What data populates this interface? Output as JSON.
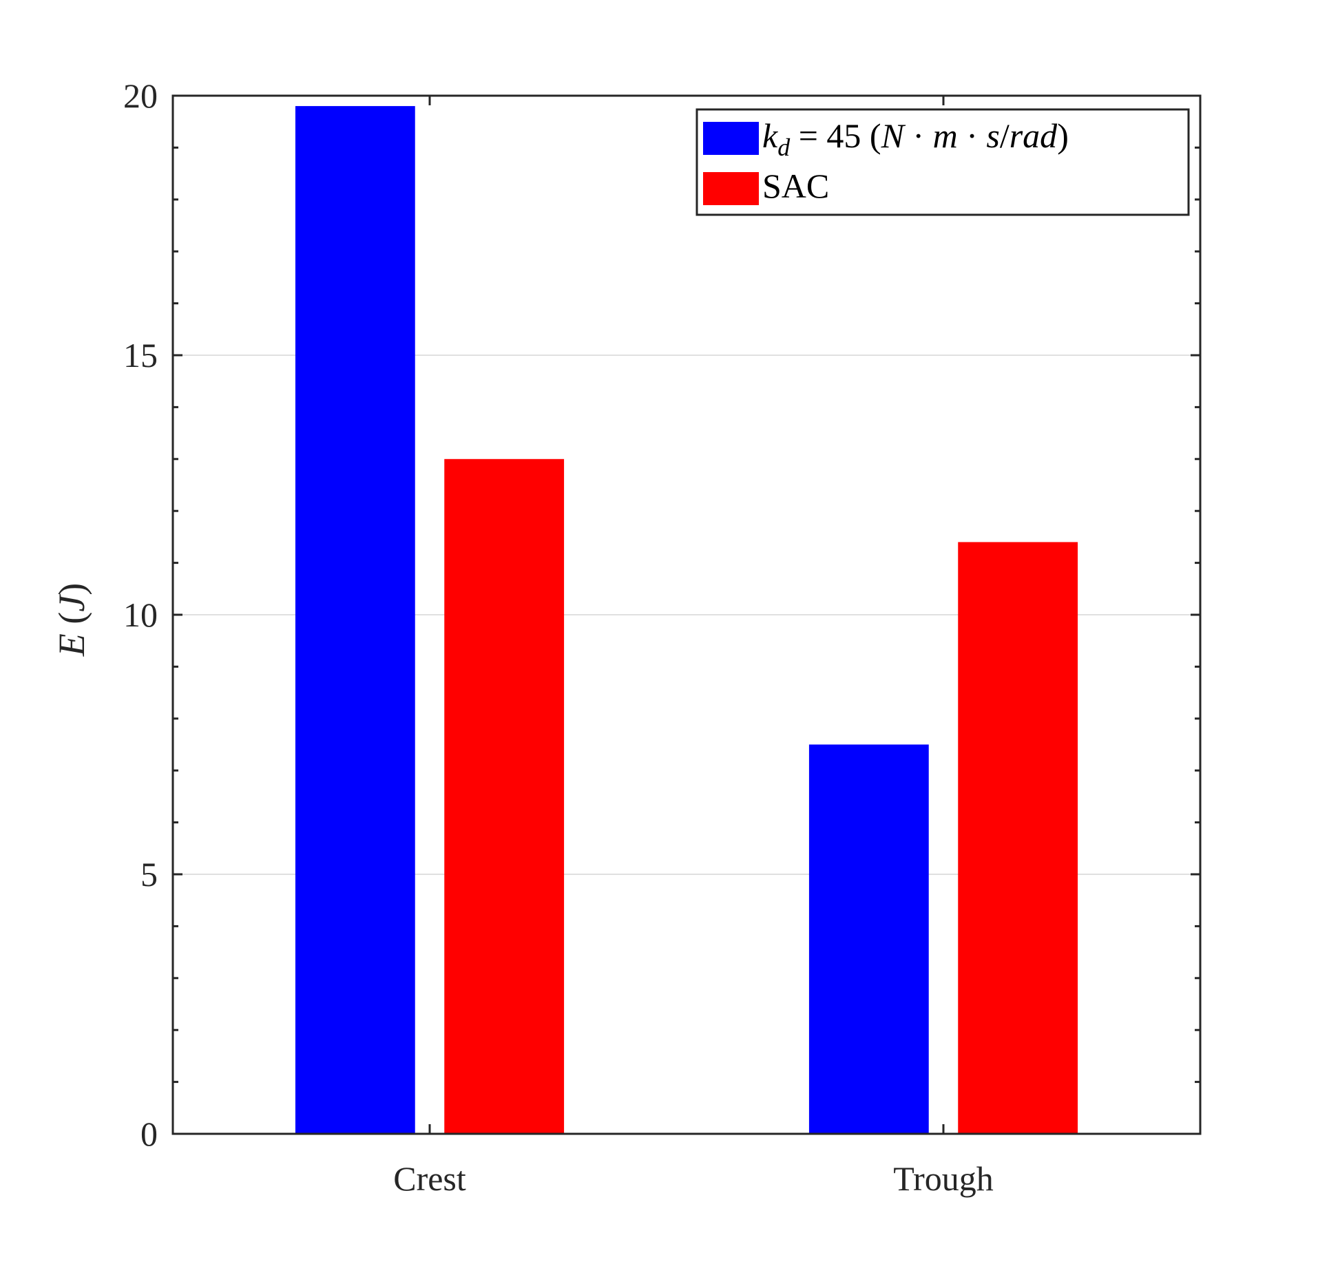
{
  "chart_data": {
    "type": "bar",
    "categories": [
      "Crest",
      "Trough"
    ],
    "series": [
      {
        "legend_parts": [
          "k",
          "d",
          " = 45 (",
          "N",
          " · ",
          "m",
          " · ",
          "s",
          "/",
          "rad",
          ")"
        ],
        "values": [
          19.8,
          7.5
        ],
        "color": "#0000ff"
      },
      {
        "name": "SAC",
        "values": [
          13.0,
          11.4
        ],
        "color": "#ff0000"
      }
    ],
    "ylabel_parts": [
      "E",
      " (",
      "J",
      ")"
    ],
    "ylim": [
      0,
      20
    ],
    "yticks": [
      "0",
      "5",
      "10",
      "15",
      "20"
    ],
    "grid": true,
    "legend_position": "top-right"
  }
}
